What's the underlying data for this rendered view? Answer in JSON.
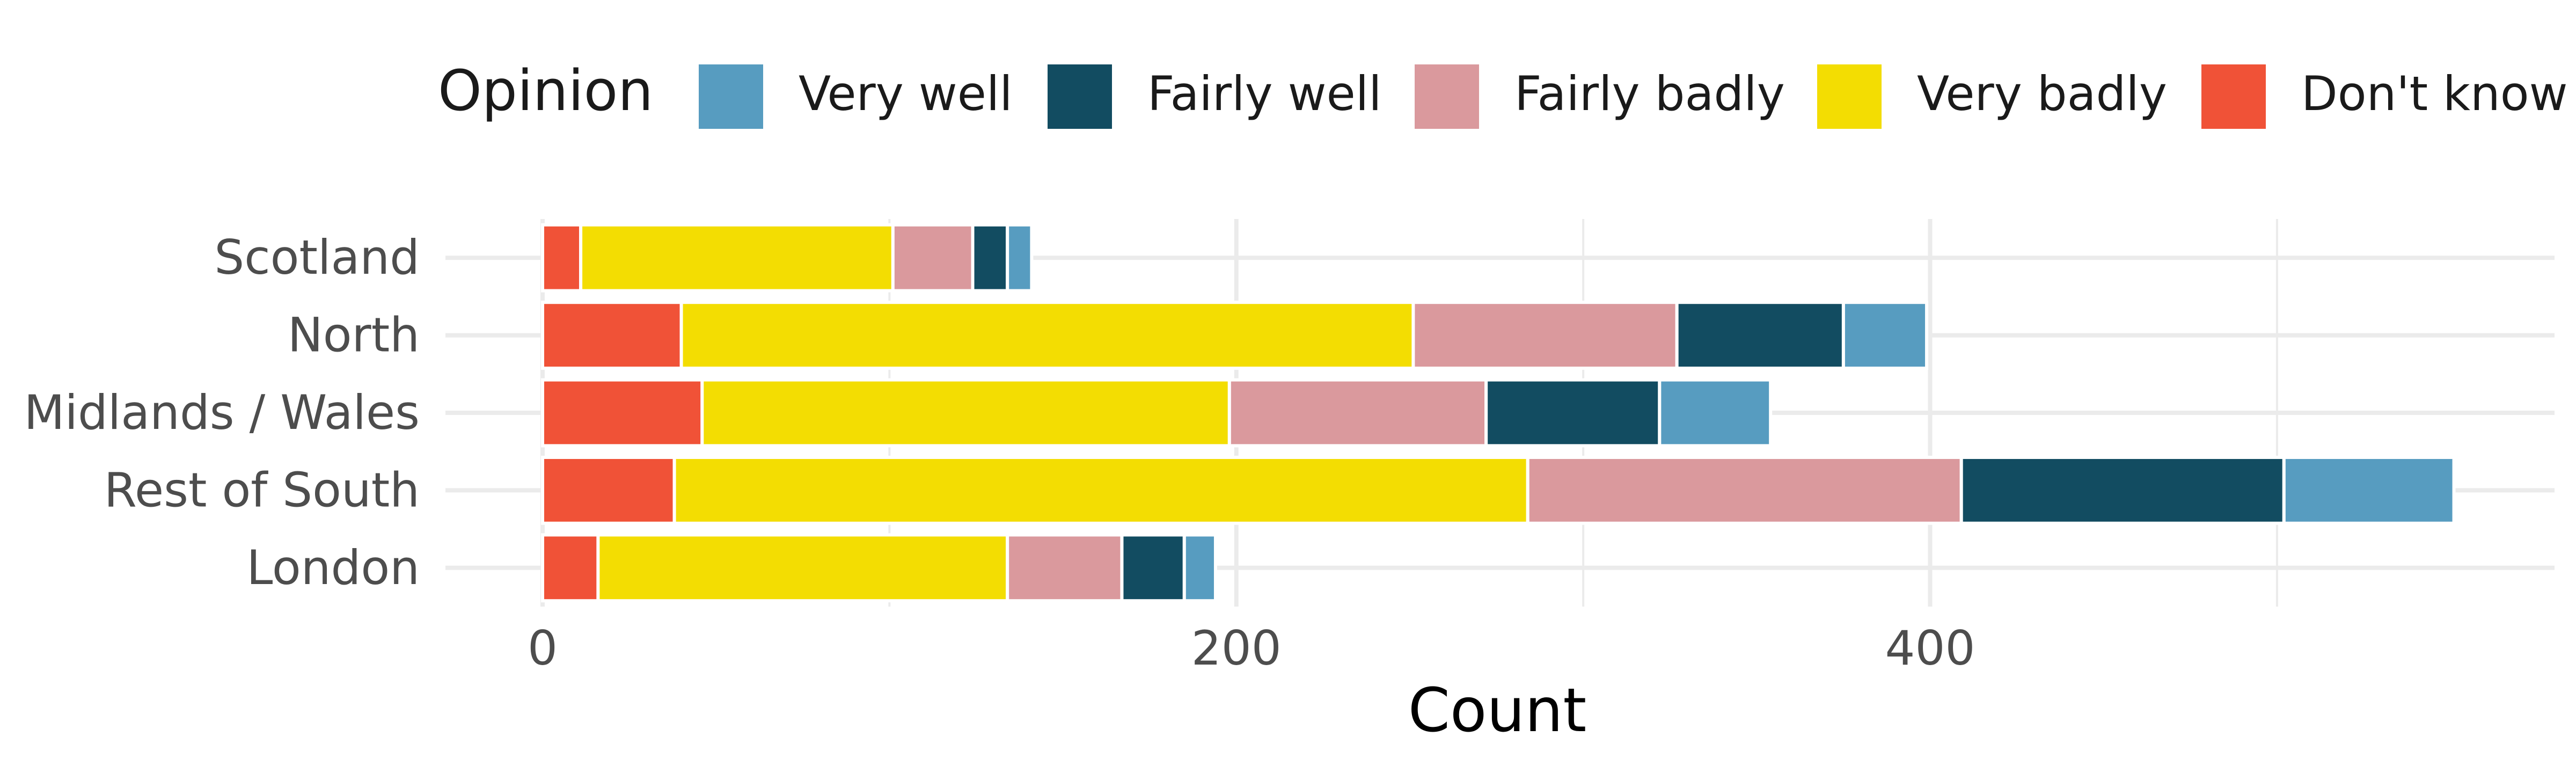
{
  "chart_data": {
    "type": "bar",
    "orientation": "horizontal",
    "stacked": true,
    "xlabel": "Count",
    "ylabel": "",
    "xlim": [
      -28,
      580
    ],
    "x_ticks": [
      0,
      200,
      400
    ],
    "categories": [
      "Scotland",
      "North",
      "Midlands / Wales",
      "Rest of South",
      "London"
    ],
    "legend": {
      "title": "Opinion",
      "position": "top",
      "entries": [
        "Very well",
        "Fairly well",
        "Fairly badly",
        "Very badly",
        "Don't know"
      ]
    },
    "series": [
      {
        "name": "Don't know",
        "color": "#F05237",
        "values": [
          11,
          40,
          46,
          38,
          16
        ]
      },
      {
        "name": "Very badly",
        "color": "#F3DD02",
        "values": [
          90,
          211,
          152,
          246,
          118
        ]
      },
      {
        "name": "Fairly badly",
        "color": "#DA999D",
        "values": [
          23,
          76,
          74,
          125,
          33
        ]
      },
      {
        "name": "Fairly well",
        "color": "#124C61",
        "values": [
          10,
          48,
          50,
          93,
          18
        ]
      },
      {
        "name": "Very well",
        "color": "#579CC0",
        "values": [
          7,
          24,
          32,
          49,
          9
        ]
      }
    ],
    "grid": true
  }
}
